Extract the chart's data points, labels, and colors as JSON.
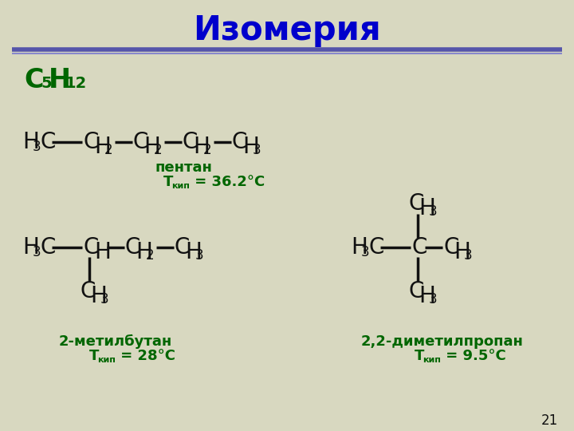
{
  "title": "Изомерия",
  "title_color": "#0000cc",
  "title_fontsize": 30,
  "bg_color": "#d8d8c0",
  "line_color1": "#5555aa",
  "line_color2": "#8888cc",
  "black": "#111111",
  "green": "#006600",
  "page_num": "21",
  "pentan_label": "пентан",
  "pentan_tkip_pre": "T",
  "pentan_tkip_sub": "кип",
  "pentan_tkip_val": " = 36.2°C",
  "methylbutane_label": "2-метилбутан",
  "methylbutane_tkip_val": " = 28°C",
  "dimethylpropane_label": "2,2-диметилпропан",
  "dimethylpropane_tkip_val": " = 9.5°C"
}
